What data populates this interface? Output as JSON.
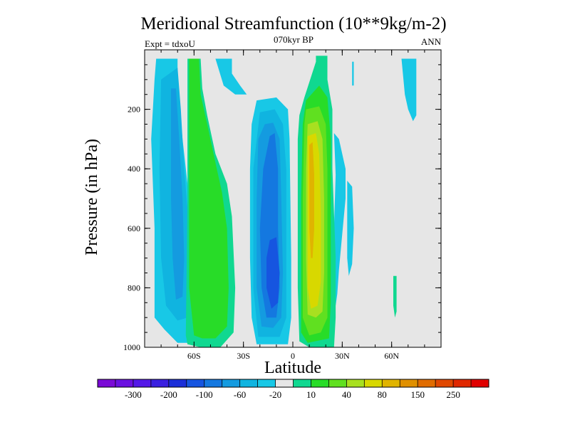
{
  "chart_data": {
    "type": "heatmap",
    "title": "Meridional Streamfunction (10**9kg/m-2)",
    "subtitle": "070kyr BP",
    "left_note": "Expt = tdxoU",
    "right_note": "ANN",
    "xlabel": "Latitude",
    "ylabel": "Pressure (in hPa)",
    "xlim": [
      -90,
      90
    ],
    "ylim": [
      1000,
      0
    ],
    "x_ticks": [
      {
        "value": -60,
        "label": "60S"
      },
      {
        "value": -30,
        "label": "30S"
      },
      {
        "value": 0,
        "label": "0"
      },
      {
        "value": 30,
        "label": "30N"
      },
      {
        "value": 60,
        "label": "60N"
      }
    ],
    "y_ticks": [
      {
        "value": 200,
        "label": "200"
      },
      {
        "value": 400,
        "label": "400"
      },
      {
        "value": 600,
        "label": "600"
      },
      {
        "value": 800,
        "label": "800"
      },
      {
        "value": 1000,
        "label": "1000"
      }
    ],
    "background_color": "#e6e6e6",
    "colorbar": {
      "colors": [
        "#7a0ad6",
        "#6a10e0",
        "#5418e8",
        "#3a20e0",
        "#1b2fd8",
        "#1655e0",
        "#1478e0",
        "#149be0",
        "#10b4e0",
        "#18c8e6",
        "#e6e6e6",
        "#10d890",
        "#28dc28",
        "#60e020",
        "#a8e020",
        "#d8d800",
        "#e0b400",
        "#e09000",
        "#e06c00",
        "#e04800",
        "#e02800",
        "#e00000"
      ],
      "labels": [
        "-300",
        "-200",
        "-100",
        "-60",
        "-20",
        "10",
        "40",
        "80",
        "150",
        "250"
      ],
      "label_after_index": [
        1,
        3,
        5,
        7,
        9,
        11,
        13,
        15,
        17,
        19
      ]
    },
    "contour_regions": [
      {
        "color": "#18c8e6",
        "points": [
          [
            -83,
            30
          ],
          [
            -70,
            30
          ],
          [
            -70,
            120
          ],
          [
            -67,
            300
          ],
          [
            -63,
            500
          ],
          [
            -59,
            700
          ],
          [
            -56,
            850
          ],
          [
            -57,
            950
          ],
          [
            -62,
            985
          ],
          [
            -70,
            985
          ],
          [
            -78,
            940
          ],
          [
            -84,
            900
          ],
          [
            -84,
            600
          ],
          [
            -86,
            300
          ],
          [
            -84,
            100
          ]
        ]
      },
      {
        "color": "#10b4e0",
        "points": [
          [
            -80,
            100
          ],
          [
            -70,
            60
          ],
          [
            -68,
            200
          ],
          [
            -66,
            400
          ],
          [
            -63,
            600
          ],
          [
            -62,
            800
          ],
          [
            -64,
            900
          ],
          [
            -70,
            910
          ],
          [
            -77,
            860
          ],
          [
            -80,
            700
          ],
          [
            -81,
            400
          ]
        ]
      },
      {
        "color": "#149be0",
        "points": [
          [
            -74,
            130
          ],
          [
            -71,
            130
          ],
          [
            -69,
            300
          ],
          [
            -67,
            500
          ],
          [
            -66,
            700
          ],
          [
            -67,
            830
          ],
          [
            -71,
            840
          ],
          [
            -73,
            700
          ],
          [
            -74,
            500
          ]
        ]
      },
      {
        "color": "#18c8e6",
        "points": [
          [
            -47,
            30
          ],
          [
            -37,
            30
          ],
          [
            -37,
            80
          ],
          [
            -32,
            120
          ],
          [
            -28,
            150
          ],
          [
            -35,
            150
          ],
          [
            -42,
            120
          ]
        ]
      },
      {
        "color": "#18c8e6",
        "points": [
          [
            -22,
            170
          ],
          [
            -10,
            160
          ],
          [
            -3,
            200
          ],
          [
            -2,
            300
          ],
          [
            -1,
            700
          ],
          [
            -1,
            900
          ],
          [
            -3,
            990
          ],
          [
            -22,
            990
          ],
          [
            -25,
            900
          ],
          [
            -26,
            700
          ],
          [
            -26,
            400
          ],
          [
            -25,
            250
          ]
        ]
      },
      {
        "color": "#10b4e0",
        "points": [
          [
            -20,
            210
          ],
          [
            -11,
            200
          ],
          [
            -6,
            250
          ],
          [
            -4,
            400
          ],
          [
            -4,
            700
          ],
          [
            -4,
            900
          ],
          [
            -8,
            965
          ],
          [
            -21,
            965
          ],
          [
            -24,
            800
          ],
          [
            -24,
            400
          ]
        ]
      },
      {
        "color": "#149be0",
        "points": [
          [
            -17,
            250
          ],
          [
            -12,
            245
          ],
          [
            -8,
            300
          ],
          [
            -7,
            500
          ],
          [
            -6,
            750
          ],
          [
            -7,
            900
          ],
          [
            -12,
            935
          ],
          [
            -19,
            930
          ],
          [
            -22,
            800
          ],
          [
            -22,
            500
          ],
          [
            -21,
            300
          ]
        ]
      },
      {
        "color": "#1478e0",
        "points": [
          [
            -14,
            290
          ],
          [
            -11,
            280
          ],
          [
            -9,
            400
          ],
          [
            -9,
            600
          ],
          [
            -8,
            800
          ],
          [
            -10,
            900
          ],
          [
            -16,
            900
          ],
          [
            -19,
            800
          ],
          [
            -20,
            600
          ],
          [
            -18,
            400
          ]
        ]
      },
      {
        "color": "#1655e0",
        "points": [
          [
            -14,
            640
          ],
          [
            -10,
            630
          ],
          [
            -8,
            750
          ],
          [
            -9,
            850
          ],
          [
            -13,
            870
          ],
          [
            -16,
            800
          ],
          [
            -16,
            700
          ]
        ]
      },
      {
        "color": "#18c8e6",
        "points": [
          [
            25,
            280
          ],
          [
            28,
            300
          ],
          [
            32,
            400
          ],
          [
            32,
            500
          ],
          [
            30,
            620
          ],
          [
            28,
            740
          ],
          [
            27,
            820
          ],
          [
            26,
            860
          ],
          [
            25,
            800
          ],
          [
            25,
            600
          ],
          [
            26,
            420
          ]
        ]
      },
      {
        "color": "#18c8e6",
        "points": [
          [
            33,
            440
          ],
          [
            36,
            460
          ],
          [
            37,
            600
          ],
          [
            36,
            720
          ],
          [
            34,
            760
          ],
          [
            33,
            700
          ],
          [
            33,
            560
          ]
        ]
      },
      {
        "color": "#18c8e6",
        "points": [
          [
            36,
            40
          ],
          [
            37,
            40
          ],
          [
            37,
            120
          ],
          [
            36,
            120
          ]
        ]
      },
      {
        "color": "#18c8e6",
        "points": [
          [
            66,
            30
          ],
          [
            75,
            30
          ],
          [
            75,
            220
          ],
          [
            73,
            240
          ],
          [
            70,
            200
          ],
          [
            68,
            150
          ]
        ]
      },
      {
        "color": "#10d890",
        "points": [
          [
            61,
            760
          ],
          [
            63,
            760
          ],
          [
            63,
            880
          ],
          [
            62,
            900
          ],
          [
            61,
            860
          ]
        ]
      },
      {
        "color": "#10d890",
        "points": [
          [
            -64,
            30
          ],
          [
            -56,
            30
          ],
          [
            -55,
            130
          ],
          [
            -52,
            220
          ],
          [
            -47,
            350
          ],
          [
            -40,
            450
          ],
          [
            -37,
            560
          ],
          [
            -35,
            800
          ],
          [
            -36,
            950
          ],
          [
            -44,
            1000
          ],
          [
            -56,
            1000
          ],
          [
            -64,
            990
          ],
          [
            -65,
            960
          ],
          [
            -64,
            500
          ]
        ]
      },
      {
        "color": "#28dc28",
        "points": [
          [
            -63,
            30
          ],
          [
            -57,
            30
          ],
          [
            -56,
            150
          ],
          [
            -52,
            250
          ],
          [
            -47,
            380
          ],
          [
            -43,
            480
          ],
          [
            -40,
            600
          ],
          [
            -39,
            800
          ],
          [
            -40,
            930
          ],
          [
            -47,
            970
          ],
          [
            -55,
            970
          ],
          [
            -60,
            960
          ],
          [
            -63,
            800
          ],
          [
            -63,
            300
          ]
        ]
      },
      {
        "color": "#10d890",
        "points": [
          [
            7,
            160
          ],
          [
            14,
            40
          ],
          [
            14,
            20
          ],
          [
            21,
            20
          ],
          [
            21,
            100
          ],
          [
            24,
            200
          ],
          [
            24,
            400
          ],
          [
            26,
            700
          ],
          [
            26,
            900
          ],
          [
            25,
            1000
          ],
          [
            10,
            1000
          ],
          [
            4,
            980
          ],
          [
            3,
            800
          ],
          [
            3,
            300
          ],
          [
            4,
            220
          ]
        ]
      },
      {
        "color": "#28dc28",
        "points": [
          [
            8,
            170
          ],
          [
            16,
            120
          ],
          [
            21,
            160
          ],
          [
            23,
            300
          ],
          [
            23,
            600
          ],
          [
            23,
            850
          ],
          [
            22,
            970
          ],
          [
            9,
            985
          ],
          [
            5,
            950
          ],
          [
            5,
            500
          ],
          [
            6,
            250
          ]
        ]
      },
      {
        "color": "#60e020",
        "points": [
          [
            8,
            200
          ],
          [
            16,
            190
          ],
          [
            20,
            250
          ],
          [
            21,
            400
          ],
          [
            21,
            700
          ],
          [
            21,
            900
          ],
          [
            17,
            950
          ],
          [
            10,
            960
          ],
          [
            6,
            900
          ],
          [
            6,
            500
          ],
          [
            7,
            250
          ]
        ]
      },
      {
        "color": "#a8e020",
        "points": [
          [
            9,
            250
          ],
          [
            15,
            240
          ],
          [
            18,
            300
          ],
          [
            19,
            500
          ],
          [
            19,
            750
          ],
          [
            18,
            880
          ],
          [
            14,
            900
          ],
          [
            9,
            890
          ],
          [
            8,
            700
          ],
          [
            8,
            400
          ]
        ]
      },
      {
        "color": "#d8d800",
        "points": [
          [
            9,
            290
          ],
          [
            14,
            280
          ],
          [
            16,
            350
          ],
          [
            17,
            550
          ],
          [
            17,
            780
          ],
          [
            15,
            860
          ],
          [
            11,
            870
          ],
          [
            9,
            800
          ],
          [
            9,
            500
          ]
        ]
      },
      {
        "color": "#e0b400",
        "points": [
          [
            10,
            320
          ],
          [
            12,
            310
          ],
          [
            13,
            420
          ],
          [
            13,
            600
          ],
          [
            12,
            700
          ],
          [
            11,
            700
          ],
          [
            10,
            600
          ],
          [
            10,
            450
          ]
        ]
      }
    ]
  }
}
